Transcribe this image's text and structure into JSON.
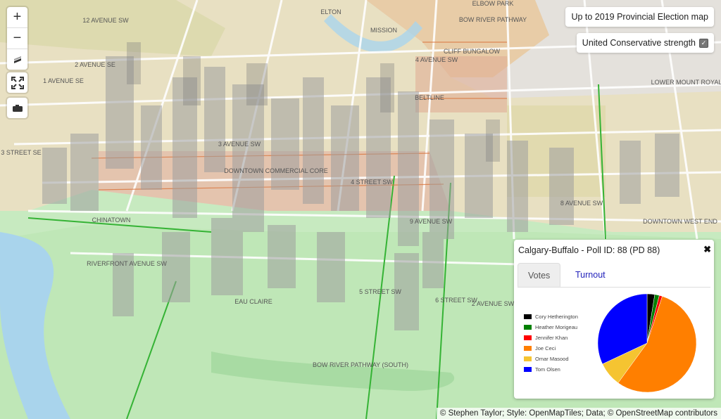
{
  "controls": {
    "zoom_in": "+",
    "zoom_out": "−"
  },
  "election_button": "Up to 2019 Provincial Election map",
  "layer_toggle": {
    "label": "United Conservative strength",
    "checked": true
  },
  "map_labels": [
    "4 AVENUE SW",
    "3 AVENUE SW",
    "2 AVENUE SW",
    "1 AVENUE SE",
    "2 AVENUE SE",
    "3 STREET SE",
    "MISSION",
    "BOW RIVER PATHWAY",
    "CLIFF BUNGALOW",
    "BELTLINE",
    "LOWER MOUNT ROYAL",
    "DOWNTOWN COMMERCIAL CORE",
    "CHINATOWN",
    "RIVERFRONT AVENUE SW",
    "EAU CLAIRE",
    "BOW RIVER PATHWAY (SOUTH)",
    "DOWNTOWN WEST END",
    "4 STREET SW",
    "5 STREET SW",
    "6 STREET SW",
    "8 AVENUE SW",
    "9 AVENUE SW",
    "12 AVENUE SW",
    "ELTON",
    "ELBOW PARK"
  ],
  "popup": {
    "title": "Calgary-Buffalo - Poll ID: 88 (PD 88)",
    "close": "✖",
    "tabs": [
      "Votes",
      "Turnout"
    ],
    "legend": [
      {
        "name": "Cory Hetherington",
        "color": "#000000"
      },
      {
        "name": "Heather Morigeau",
        "color": "#008000"
      },
      {
        "name": "Jennifer Khan",
        "color": "#ff0000"
      },
      {
        "name": "Joe Ceci",
        "color": "#ff7f00"
      },
      {
        "name": "Omar Masood",
        "color": "#f5c431"
      },
      {
        "name": "Tom Olsen",
        "color": "#0000ff"
      }
    ]
  },
  "chart_data": {
    "type": "pie",
    "labels": [
      "Cory Hetherington",
      "Heather Morigeau",
      "Jennifer Khan",
      "Joe Ceci",
      "Omar Masood",
      "Tom Olsen"
    ],
    "values": [
      2.5,
      1.5,
      1.0,
      55.0,
      8.0,
      32.0
    ],
    "colors": [
      "#000000",
      "#008000",
      "#ff0000",
      "#ff7f00",
      "#f5c431",
      "#0000ff"
    ]
  },
  "attribution": "© Stephen Taylor; Style: OpenMapTiles; Data; © OpenStreetMap contributors"
}
